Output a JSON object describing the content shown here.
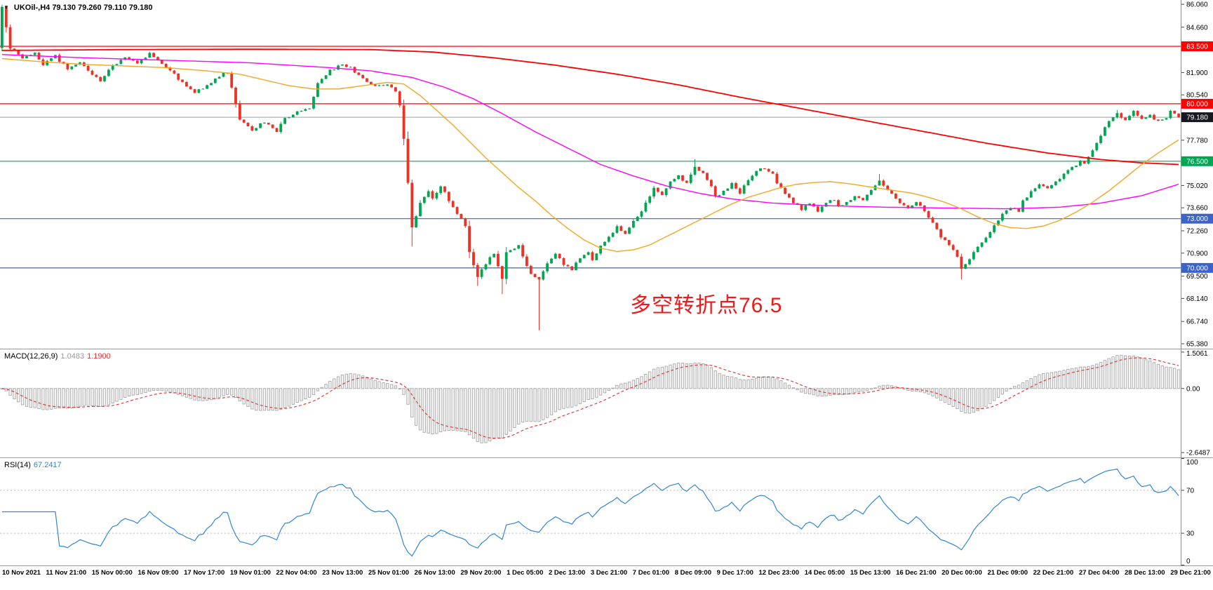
{
  "header": {
    "collapse_arrow": "▼",
    "symbol_info": "UKOil-,H4   79.130 79.260 79.110 79.180"
  },
  "colors": {
    "candle_up": "#00a650",
    "candle_down": "#ee3124",
    "ma_slow": "#fe0000",
    "ma_mid": "#ff00ff",
    "ma_fast": "#f5a623",
    "bid_line": "#9aa0a6",
    "bid_label_bg": "#17171f",
    "macd_hist": "#a8a8a8",
    "macd_signal": "#e03030",
    "rsi_line": "#2f86d6",
    "axis_text": "#000000",
    "annotation": "#f01818"
  },
  "chart_data": {
    "type": "candlestick",
    "symbol": "UKOil-",
    "timeframe": "H4",
    "ohlc_current": {
      "open": "79.130",
      "high": "79.260",
      "low": "79.110",
      "close": "79.180"
    },
    "bars": 288,
    "price_axis": {
      "view_max": 86.32,
      "view_min": 65.08,
      "visible_ticks": [
        "86.060",
        "84.660",
        "81.900",
        "80.540",
        "77.780",
        "75.020",
        "73.660",
        "72.260",
        "70.900",
        "69.500",
        "68.140",
        "66.740",
        "65.380"
      ]
    },
    "bid_price": 79.18,
    "hlines": [
      {
        "value": 83.5,
        "label": "83.500",
        "color": "#fe0000"
      },
      {
        "value": 80.0,
        "label": "80.000",
        "color": "#fe0000"
      },
      {
        "value": 79.18,
        "label": "79.180",
        "color": "#9aa0a6",
        "box": "#17171f",
        "is_bid": true
      },
      {
        "value": 76.5,
        "label": "76.500",
        "color": "#00a651"
      },
      {
        "value": 73.0,
        "label": "73.000",
        "color": "#3c64c8"
      },
      {
        "value": 70.0,
        "label": "70.000",
        "color": "#3c64c8"
      }
    ],
    "annotation": {
      "text": "多空转折点76.5",
      "color": "#f01818"
    },
    "close_keypoints": [
      [
        0,
        85.9
      ],
      [
        2,
        83.4
      ],
      [
        5,
        82.8
      ],
      [
        8,
        83.1
      ],
      [
        10,
        82.4
      ],
      [
        13,
        82.9
      ],
      [
        16,
        82.1
      ],
      [
        19,
        82.5
      ],
      [
        22,
        81.8
      ],
      [
        24,
        81.4
      ],
      [
        27,
        82.3
      ],
      [
        30,
        82.9
      ],
      [
        33,
        82.4
      ],
      [
        36,
        83.1
      ],
      [
        38,
        82.7
      ],
      [
        41,
        82.0
      ],
      [
        44,
        81.3
      ],
      [
        47,
        80.7
      ],
      [
        50,
        81.1
      ],
      [
        53,
        81.7
      ],
      [
        55,
        81.9
      ],
      [
        58,
        79.0
      ],
      [
        61,
        78.4
      ],
      [
        64,
        78.9
      ],
      [
        67,
        78.3
      ],
      [
        69,
        79.1
      ],
      [
        72,
        79.5
      ],
      [
        75,
        79.7
      ],
      [
        77,
        81.2
      ],
      [
        80,
        82.0
      ],
      [
        83,
        82.4
      ],
      [
        85,
        82.2
      ],
      [
        88,
        81.5
      ],
      [
        91,
        81.1
      ],
      [
        94,
        81.2
      ],
      [
        96,
        80.8
      ],
      [
        97,
        79.9
      ],
      [
        98,
        77.8
      ],
      [
        99,
        75.2
      ],
      [
        100,
        72.5
      ],
      [
        102,
        73.9
      ],
      [
        104,
        74.6
      ],
      [
        105,
        74.2
      ],
      [
        107,
        75.0
      ],
      [
        109,
        74.1
      ],
      [
        111,
        73.3
      ],
      [
        113,
        72.6
      ],
      [
        114,
        70.9
      ],
      [
        116,
        69.5
      ],
      [
        118,
        70.3
      ],
      [
        120,
        70.9
      ],
      [
        122,
        69.4
      ],
      [
        123,
        70.9
      ],
      [
        126,
        71.4
      ],
      [
        128,
        70.1
      ],
      [
        129,
        69.6
      ],
      [
        131,
        69.3
      ],
      [
        133,
        70.3
      ],
      [
        135,
        70.9
      ],
      [
        137,
        70.2
      ],
      [
        139,
        69.9
      ],
      [
        141,
        70.6
      ],
      [
        143,
        71.0
      ],
      [
        144,
        70.5
      ],
      [
        146,
        71.3
      ],
      [
        148,
        71.9
      ],
      [
        150,
        72.5
      ],
      [
        152,
        72.1
      ],
      [
        154,
        72.9
      ],
      [
        156,
        73.5
      ],
      [
        158,
        74.3
      ],
      [
        159,
        74.9
      ],
      [
        161,
        74.5
      ],
      [
        163,
        75.2
      ],
      [
        165,
        75.6
      ],
      [
        167,
        75.1
      ],
      [
        169,
        76.2
      ],
      [
        171,
        75.7
      ],
      [
        173,
        74.9
      ],
      [
        174,
        74.3
      ],
      [
        176,
        74.7
      ],
      [
        178,
        75.1
      ],
      [
        180,
        74.6
      ],
      [
        182,
        75.3
      ],
      [
        184,
        75.9
      ],
      [
        186,
        76.1
      ],
      [
        188,
        75.7
      ],
      [
        189,
        75.1
      ],
      [
        191,
        74.5
      ],
      [
        193,
        74.0
      ],
      [
        195,
        73.6
      ],
      [
        197,
        73.9
      ],
      [
        199,
        73.5
      ],
      [
        201,
        73.9
      ],
      [
        203,
        74.2
      ],
      [
        204,
        73.7
      ],
      [
        206,
        74.0
      ],
      [
        208,
        74.4
      ],
      [
        210,
        74.1
      ],
      [
        212,
        74.7
      ],
      [
        214,
        75.3
      ],
      [
        216,
        74.8
      ],
      [
        218,
        74.3
      ],
      [
        219,
        73.9
      ],
      [
        221,
        73.6
      ],
      [
        223,
        74.0
      ],
      [
        225,
        73.5
      ],
      [
        227,
        72.7
      ],
      [
        229,
        71.9
      ],
      [
        231,
        71.4
      ],
      [
        233,
        70.7
      ],
      [
        234,
        69.9
      ],
      [
        236,
        70.6
      ],
      [
        238,
        71.3
      ],
      [
        240,
        71.9
      ],
      [
        242,
        72.6
      ],
      [
        244,
        73.3
      ],
      [
        246,
        73.7
      ],
      [
        248,
        73.4
      ],
      [
        249,
        74.1
      ],
      [
        251,
        74.6
      ],
      [
        253,
        75.1
      ],
      [
        255,
        74.8
      ],
      [
        257,
        75.3
      ],
      [
        259,
        75.7
      ],
      [
        261,
        76.1
      ],
      [
        263,
        76.5
      ],
      [
        264,
        76.3
      ],
      [
        266,
        77.1
      ],
      [
        268,
        78.1
      ],
      [
        270,
        78.9
      ],
      [
        272,
        79.4
      ],
      [
        274,
        79.0
      ],
      [
        276,
        79.5
      ],
      [
        278,
        79.1
      ],
      [
        280,
        79.3
      ],
      [
        282,
        78.9
      ],
      [
        284,
        79.2
      ],
      [
        285,
        79.5
      ],
      [
        287,
        79.18
      ]
    ],
    "wick_overrides": [
      {
        "bar": 0,
        "open": 83.4,
        "high": 86.03,
        "low": 83.2
      },
      {
        "bar": 100,
        "low": 71.3
      },
      {
        "bar": 116,
        "low": 68.9
      },
      {
        "bar": 122,
        "low": 68.4
      },
      {
        "bar": 131,
        "low": 66.2
      },
      {
        "bar": 169,
        "high": 76.62
      },
      {
        "bar": 214,
        "high": 75.72
      },
      {
        "bar": 234,
        "low": 69.3
      },
      {
        "bar": 272,
        "high": 79.62
      }
    ],
    "ma_lines": [
      {
        "name": "ma-slow",
        "color": "#fe0000",
        "width": 1.8,
        "points": [
          [
            0,
            83.25
          ],
          [
            30,
            83.3
          ],
          [
            60,
            83.32
          ],
          [
            90,
            83.3
          ],
          [
            105,
            83.15
          ],
          [
            120,
            82.8
          ],
          [
            135,
            82.35
          ],
          [
            150,
            81.8
          ],
          [
            165,
            81.15
          ],
          [
            180,
            80.4
          ],
          [
            195,
            79.7
          ],
          [
            210,
            79.0
          ],
          [
            225,
            78.3
          ],
          [
            240,
            77.6
          ],
          [
            255,
            77.0
          ],
          [
            268,
            76.6
          ],
          [
            278,
            76.4
          ],
          [
            287,
            76.3
          ]
        ]
      },
      {
        "name": "ma-mid",
        "color": "#ff00ff",
        "width": 1.4,
        "points": [
          [
            0,
            83.0
          ],
          [
            20,
            82.8
          ],
          [
            40,
            82.65
          ],
          [
            60,
            82.5
          ],
          [
            80,
            82.2
          ],
          [
            90,
            82.0
          ],
          [
            100,
            81.6
          ],
          [
            108,
            81.0
          ],
          [
            115,
            80.3
          ],
          [
            122,
            79.4
          ],
          [
            130,
            78.3
          ],
          [
            138,
            77.3
          ],
          [
            146,
            76.3
          ],
          [
            154,
            75.6
          ],
          [
            162,
            75.0
          ],
          [
            170,
            74.55
          ],
          [
            178,
            74.2
          ],
          [
            188,
            73.95
          ],
          [
            200,
            73.8
          ],
          [
            215,
            73.7
          ],
          [
            230,
            73.65
          ],
          [
            245,
            73.6
          ],
          [
            258,
            73.7
          ],
          [
            268,
            73.95
          ],
          [
            278,
            74.4
          ],
          [
            287,
            75.1
          ]
        ]
      },
      {
        "name": "ma-fast",
        "color": "#f5a623",
        "width": 1.4,
        "points": [
          [
            0,
            82.75
          ],
          [
            10,
            82.55
          ],
          [
            20,
            82.4
          ],
          [
            30,
            82.3
          ],
          [
            40,
            82.2
          ],
          [
            50,
            82.0
          ],
          [
            58,
            81.8
          ],
          [
            64,
            81.45
          ],
          [
            70,
            81.1
          ],
          [
            76,
            80.9
          ],
          [
            82,
            80.9
          ],
          [
            88,
            81.1
          ],
          [
            94,
            81.3
          ],
          [
            98,
            81.2
          ],
          [
            102,
            80.5
          ],
          [
            106,
            79.6
          ],
          [
            110,
            78.7
          ],
          [
            114,
            77.7
          ],
          [
            118,
            76.7
          ],
          [
            122,
            75.8
          ],
          [
            126,
            74.9
          ],
          [
            130,
            74.1
          ],
          [
            134,
            73.2
          ],
          [
            138,
            72.4
          ],
          [
            142,
            71.7
          ],
          [
            146,
            71.2
          ],
          [
            150,
            71.0
          ],
          [
            154,
            71.1
          ],
          [
            158,
            71.4
          ],
          [
            162,
            71.9
          ],
          [
            166,
            72.4
          ],
          [
            170,
            72.9
          ],
          [
            174,
            73.4
          ],
          [
            178,
            73.9
          ],
          [
            182,
            74.3
          ],
          [
            186,
            74.6
          ],
          [
            190,
            74.9
          ],
          [
            194,
            75.1
          ],
          [
            198,
            75.2
          ],
          [
            202,
            75.25
          ],
          [
            206,
            75.15
          ],
          [
            210,
            75.0
          ],
          [
            214,
            74.85
          ],
          [
            218,
            74.7
          ],
          [
            222,
            74.55
          ],
          [
            226,
            74.3
          ],
          [
            230,
            74.0
          ],
          [
            234,
            73.6
          ],
          [
            238,
            73.1
          ],
          [
            242,
            72.7
          ],
          [
            246,
            72.45
          ],
          [
            250,
            72.4
          ],
          [
            254,
            72.55
          ],
          [
            258,
            72.9
          ],
          [
            262,
            73.4
          ],
          [
            266,
            74.0
          ],
          [
            270,
            74.7
          ],
          [
            274,
            75.5
          ],
          [
            278,
            76.3
          ],
          [
            282,
            77.0
          ],
          [
            287,
            77.8
          ]
        ]
      }
    ],
    "macd": {
      "label": "MACD(12,26,9)",
      "value_main": "1.0483",
      "value_signal": "1.1900",
      "fast": 12,
      "slow": 26,
      "signal": 9,
      "scale_max": "1.5061",
      "scale_zero": "0.00",
      "scale_min": "-2.6487",
      "view_max": 1.62,
      "view_min": -2.85
    },
    "rsi": {
      "label": "RSI(14)",
      "value": "67.2417",
      "period": 14,
      "levels": [
        70,
        30
      ],
      "scale_labels": [
        "100",
        "70",
        "30",
        "0"
      ]
    },
    "time_axis": [
      "10 Nov 2021",
      "11 Nov 21:00",
      "15 Nov 00:00",
      "16 Nov 09:00",
      "17 Nov 17:00",
      "19 Nov 01:00",
      "22 Nov 04:00",
      "23 Nov 13:00",
      "25 Nov 01:00",
      "26 Nov 13:00",
      "29 Nov 20:00",
      "1 Dec 05:00",
      "2 Dec 13:00",
      "3 Dec 21:00",
      "7 Dec 01:00",
      "8 Dec 09:00",
      "9 Dec 17:00",
      "12 Dec 23:00",
      "14 Dec 05:00",
      "15 Dec 13:00",
      "16 Dec 21:00",
      "20 Dec 00:00",
      "21 Dec 09:00",
      "22 Dec 21:00",
      "27 Dec 04:00",
      "28 Dec 13:00",
      "29 Dec 21:00"
    ]
  }
}
